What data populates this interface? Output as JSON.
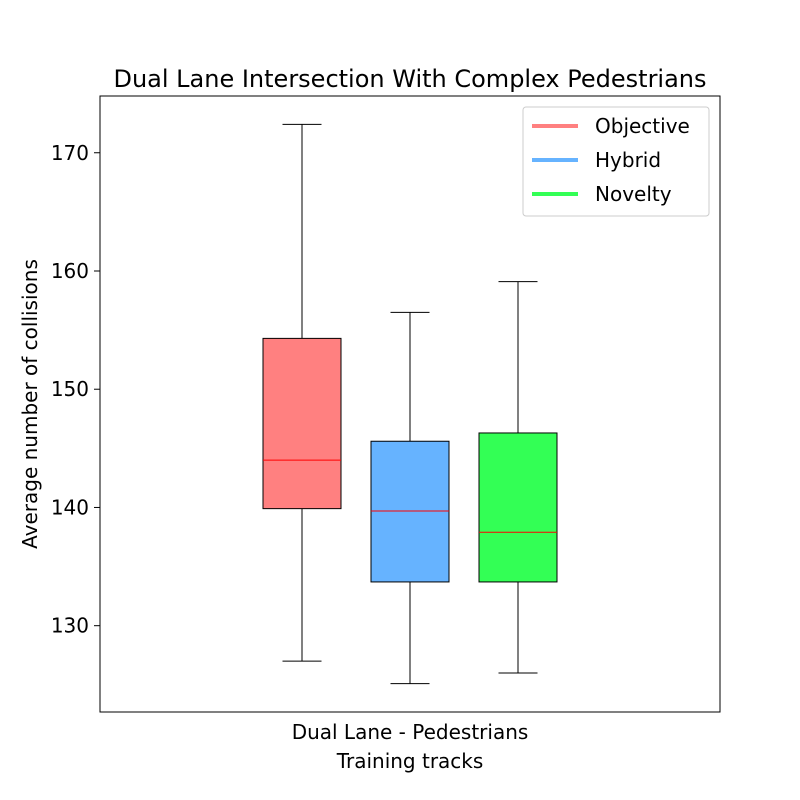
{
  "chart_data": {
    "type": "box",
    "title": "Dual Lane Intersection With Complex Pedestrians",
    "xlabel": "Training tracks",
    "ylabel": "Average number of collisions",
    "categories": [
      "Dual Lane - Pedestrians"
    ],
    "ylim": [
      122.7,
      174.8
    ],
    "yticks": [
      130,
      140,
      150,
      160,
      170
    ],
    "grid": false,
    "legend_position": "top-right",
    "median_color": "#ff0000",
    "series": [
      {
        "name": "Objective",
        "color": "#ff8080",
        "whisker_low": 127.0,
        "q1": 139.9,
        "median": 144.0,
        "q3": 154.3,
        "whisker_high": 172.4
      },
      {
        "name": "Hybrid",
        "color": "#66b3ff",
        "whisker_low": 125.1,
        "q1": 133.7,
        "median": 139.7,
        "q3": 145.6,
        "whisker_high": 156.5
      },
      {
        "name": "Novelty",
        "color": "#33ff55",
        "whisker_low": 126.0,
        "q1": 133.7,
        "median": 137.9,
        "q3": 146.3,
        "whisker_high": 159.1
      }
    ]
  }
}
